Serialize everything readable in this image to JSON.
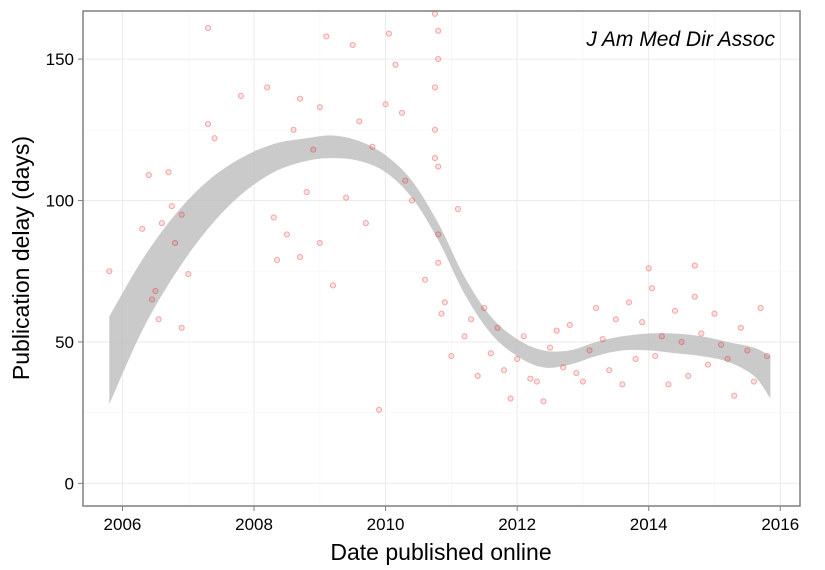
{
  "chart_data": {
    "type": "scatter",
    "title": "",
    "annotation": "J Am Med Dir Assoc",
    "xlabel": "Date published online",
    "ylabel": "Publication delay (days)",
    "xlim": [
      2005.4,
      2016.3
    ],
    "ylim": [
      -8,
      167
    ],
    "x_ticks": [
      2006,
      2008,
      2010,
      2012,
      2014,
      2016
    ],
    "y_ticks": [
      0,
      50,
      100,
      150
    ],
    "grid": true,
    "legend": "none",
    "colors": {
      "points": "#e31a1c",
      "ribbon": "#bdbdbd",
      "grid": "#ebebeb",
      "border": "#7f7f7f"
    },
    "smooth_band": {
      "x": [
        2005.8,
        2006.3,
        2006.8,
        2007.3,
        2007.8,
        2008.3,
        2008.8,
        2009.2,
        2009.6,
        2010.0,
        2010.4,
        2010.8,
        2011.2,
        2011.6,
        2012.0,
        2012.4,
        2012.8,
        2013.2,
        2013.6,
        2014.0,
        2014.4,
        2014.8,
        2015.2,
        2015.6,
        2015.85
      ],
      "lower": [
        28,
        54,
        74,
        90,
        102,
        110,
        114,
        115,
        114,
        110,
        101,
        86,
        67,
        53,
        45,
        41,
        42,
        45,
        47,
        47,
        46,
        45,
        43,
        38,
        30
      ],
      "upper": [
        59,
        79,
        95,
        107,
        115,
        120,
        122,
        123,
        121,
        116,
        107,
        92,
        73,
        59,
        51,
        47,
        47,
        50,
        52,
        53,
        53,
        52,
        50,
        48,
        45
      ]
    },
    "points": {
      "x": [
        2005.8,
        2006.3,
        2006.4,
        2006.5,
        2006.6,
        2006.7,
        2006.8,
        2006.9,
        2007.0,
        2006.45,
        2006.55,
        2006.75,
        2006.9,
        2007.3,
        2007.3,
        2007.4,
        2007.8,
        2008.3,
        2008.2,
        2008.35,
        2008.5,
        2008.6,
        2008.7,
        2008.7,
        2008.8,
        2008.9,
        2009.0,
        2009.0,
        2009.1,
        2009.2,
        2009.4,
        2009.5,
        2009.6,
        2009.7,
        2009.8,
        2009.9,
        2010.0,
        2010.05,
        2010.15,
        2010.25,
        2010.3,
        2010.4,
        2010.6,
        2010.75,
        2010.75,
        2010.75,
        2010.75,
        2010.8,
        2010.8,
        2010.8,
        2010.8,
        2010.8,
        2010.85,
        2010.9,
        2011.0,
        2011.1,
        2011.2,
        2011.3,
        2011.4,
        2011.5,
        2011.6,
        2011.7,
        2011.8,
        2011.9,
        2012.0,
        2012.1,
        2012.2,
        2012.3,
        2012.4,
        2012.5,
        2012.6,
        2012.7,
        2012.8,
        2012.9,
        2013.0,
        2013.1,
        2013.2,
        2013.3,
        2013.4,
        2013.5,
        2013.6,
        2013.7,
        2013.8,
        2013.9,
        2014.0,
        2014.05,
        2014.1,
        2014.2,
        2014.3,
        2014.4,
        2014.5,
        2014.6,
        2014.7,
        2014.7,
        2014.8,
        2014.9,
        2015.0,
        2015.1,
        2015.2,
        2015.3,
        2015.4,
        2015.5,
        2015.6,
        2015.7,
        2015.8
      ],
      "y": [
        75,
        90,
        109,
        68,
        92,
        110,
        85,
        95,
        74,
        65,
        58,
        98,
        55,
        127,
        161,
        122,
        137,
        94,
        140,
        79,
        88,
        125,
        136,
        80,
        103,
        118,
        133,
        85,
        158,
        70,
        101,
        155,
        128,
        92,
        119,
        26,
        134,
        159,
        148,
        131,
        107,
        100,
        72,
        115,
        140,
        166,
        125,
        160,
        150,
        88,
        78,
        112,
        60,
        64,
        45,
        97,
        52,
        58,
        38,
        62,
        46,
        55,
        40,
        30,
        44,
        52,
        37,
        36,
        29,
        48,
        54,
        41,
        56,
        39,
        36,
        47,
        62,
        51,
        40,
        58,
        35,
        64,
        44,
        57,
        76,
        69,
        45,
        52,
        35,
        61,
        50,
        38,
        66,
        77,
        53,
        42,
        60,
        49,
        44,
        31,
        55,
        47,
        36,
        62,
        45
      ]
    }
  }
}
